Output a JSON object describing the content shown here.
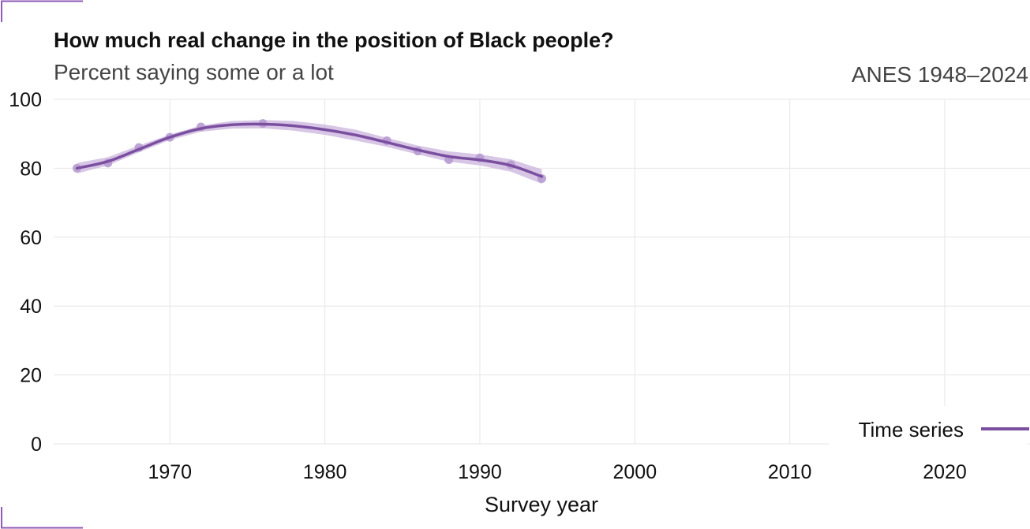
{
  "header": {
    "title": "How much real change in the position of Black people?",
    "subtitle": "Percent saying some or a lot",
    "source": "ANES 1948–2024"
  },
  "colors": {
    "series": "#7b4fa0",
    "band": "#c9b3dc",
    "points": "#b79bd0",
    "grid": "#e6e6e6",
    "accent": "#8e5bb5"
  },
  "chart_data": {
    "type": "line",
    "title": "How much real change in the position of Black people?",
    "subtitle": "Percent saying some or a lot",
    "xlabel": "Survey year",
    "ylabel": "",
    "xlim": [
      1962.5,
      2025.5
    ],
    "ylim": [
      0,
      100
    ],
    "x_ticks": [
      1970,
      1980,
      1990,
      2000,
      2010,
      2020
    ],
    "y_ticks": [
      0,
      20,
      40,
      60,
      80,
      100
    ],
    "grid": true,
    "legend": {
      "position": "bottom-right",
      "entries": [
        "Time series"
      ]
    },
    "series": [
      {
        "name": "Time series",
        "points": {
          "x": [
            1964,
            1966,
            1968,
            1970,
            1972,
            1976,
            1984,
            1986,
            1988,
            1990,
            1992,
            1994
          ],
          "y": [
            80,
            81.5,
            86,
            89,
            92,
            93,
            88,
            85,
            82.5,
            83,
            81,
            77
          ]
        },
        "smooth": {
          "x": [
            1964,
            1966,
            1968,
            1970,
            1972,
            1974,
            1976,
            1978,
            1980,
            1982,
            1984,
            1986,
            1988,
            1990,
            1992,
            1994
          ],
          "y": [
            80,
            82,
            85.5,
            89,
            91.5,
            92.6,
            92.8,
            92.3,
            91.2,
            89.6,
            87.5,
            85.3,
            83.4,
            82.4,
            80.8,
            77.6
          ]
        },
        "band_lower": [
          78.5,
          80.8,
          84.6,
          88.2,
          90.6,
          91.5,
          91.6,
          90.9,
          89.7,
          88.0,
          86.2,
          84.0,
          81.9,
          80.8,
          79.0,
          75.5
        ],
        "band_upper": [
          81.5,
          83.2,
          86.6,
          89.8,
          92.4,
          93.7,
          94.0,
          93.7,
          92.7,
          91.2,
          88.8,
          86.6,
          84.9,
          84.0,
          82.6,
          79.7
        ]
      }
    ]
  }
}
